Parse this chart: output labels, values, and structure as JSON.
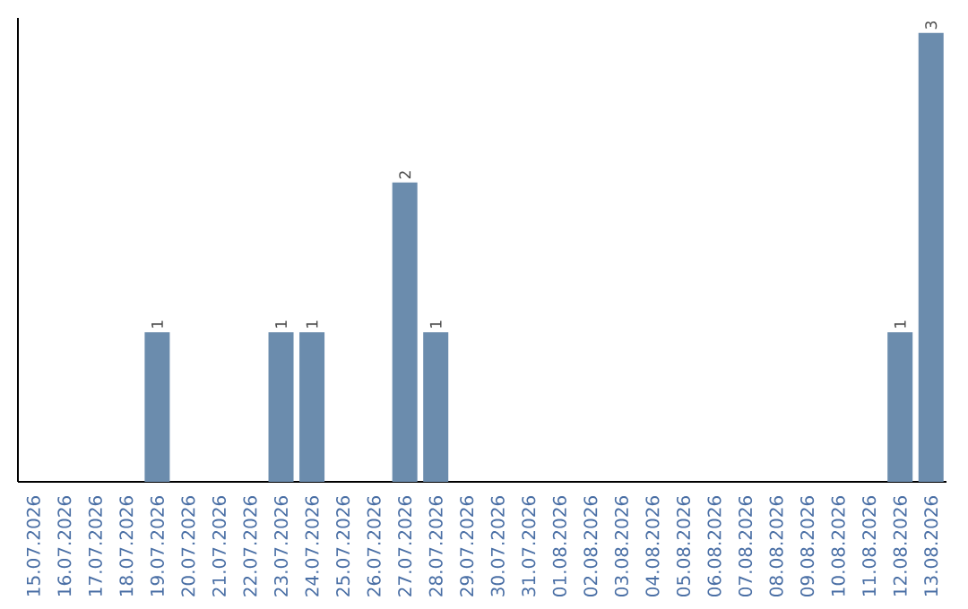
{
  "chart_data": {
    "type": "bar",
    "categories": [
      "15.07.2026",
      "16.07.2026",
      "17.07.2026",
      "18.07.2026",
      "19.07.2026",
      "20.07.2026",
      "21.07.2026",
      "22.07.2026",
      "23.07.2026",
      "24.07.2026",
      "25.07.2026",
      "26.07.2026",
      "27.07.2026",
      "28.07.2026",
      "29.07.2026",
      "30.07.2026",
      "31.07.2026",
      "01.08.2026",
      "02.08.2026",
      "03.08.2026",
      "04.08.2026",
      "05.08.2026",
      "06.08.2026",
      "07.08.2026",
      "08.08.2026",
      "09.08.2026",
      "10.08.2026",
      "11.08.2026",
      "12.08.2026",
      "13.08.2026"
    ],
    "values": [
      0,
      0,
      0,
      0,
      1,
      0,
      0,
      0,
      1,
      1,
      0,
      0,
      2,
      1,
      0,
      0,
      0,
      0,
      0,
      0,
      0,
      0,
      0,
      0,
      0,
      0,
      0,
      0,
      1,
      3
    ],
    "value_labels": [
      null,
      null,
      null,
      null,
      "1",
      null,
      null,
      null,
      "1",
      "1",
      null,
      null,
      "2",
      "1",
      null,
      null,
      null,
      null,
      null,
      null,
      null,
      null,
      null,
      null,
      null,
      null,
      null,
      null,
      "1",
      "3"
    ],
    "color": "#6b8cad",
    "ylim": [
      0,
      3.1
    ],
    "tick_labels": "x"
  }
}
